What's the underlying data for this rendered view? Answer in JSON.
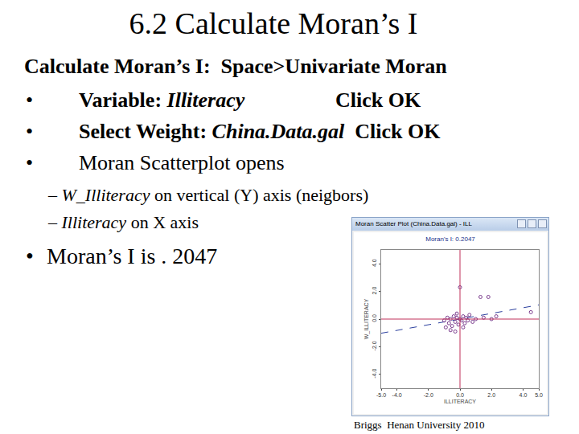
{
  "title": "6.2 Calculate Moran’s I",
  "bullet": "•",
  "heading": [
    {
      "text": "Calculate Moran’s I:  Space>Univariate Moran",
      "style": "bold"
    }
  ],
  "bullets": [
    {
      "segments": [
        {
          "text": "Variable: ",
          "style": "bold"
        },
        {
          "text": "Illiteracy",
          "style": "bolditalic"
        }
      ],
      "right": [
        {
          "text": "Click OK",
          "style": "bold"
        }
      ]
    },
    {
      "segments": [
        {
          "text": "Select Weight: ",
          "style": "bold"
        },
        {
          "text": "China.Data.gal",
          "style": "bolditalic"
        },
        {
          "text": "  Click OK",
          "style": "bold"
        }
      ]
    },
    {
      "segments": [
        {
          "text": "Moran Scatterplot opens",
          "style": "normal"
        }
      ]
    }
  ],
  "sub_bullets": [
    [
      {
        "text": "– ",
        "style": "normal"
      },
      {
        "text": "W_Illiteracy",
        "style": "italic"
      },
      {
        "text": " on vertical (Y) axis (neigbors)",
        "style": "normal"
      }
    ],
    [
      {
        "text": "– ",
        "style": "normal"
      },
      {
        "text": "Illiteracy",
        "style": "italic"
      },
      {
        "text": " on X axis",
        "style": "normal"
      }
    ]
  ],
  "result": "Moran’s I is . 2047",
  "window_title": "Moran Scatter Plot (China.Data.gal) - ILL",
  "footer": "Briggs  Henan University 2010",
  "chart_data": {
    "type": "scatter",
    "title": "Moran's I: 0.2047",
    "slope": 0.2047,
    "x_label": "ILLITERACY",
    "y_label": "W_ILLITERACY",
    "color": "#7a3a8c",
    "marker": "open_circle",
    "line_style": "dash",
    "x": [
      -1.0,
      -0.8,
      -0.7,
      -0.6,
      -0.5,
      -0.4,
      -0.3,
      -0.2,
      -0.1,
      0.0,
      0.1,
      0.2,
      0.3,
      0.4,
      0.5,
      -0.9,
      -0.6,
      -0.3,
      0.2,
      0.6,
      1.0,
      1.5,
      2.0,
      2.3,
      0.8,
      -0.2,
      0.0,
      1.3,
      1.8,
      4.5
    ],
    "values": [
      -0.1,
      0.1,
      -0.3,
      0.0,
      -0.5,
      0.2,
      -0.2,
      0.1,
      -0.4,
      0.0,
      -0.1,
      0.2,
      -0.3,
      0.1,
      -0.1,
      -0.6,
      -0.8,
      -0.9,
      -0.6,
      0.3,
      0.0,
      0.1,
      0.0,
      0.2,
      -0.2,
      0.4,
      2.3,
      1.6,
      1.6,
      0.5
    ],
    "xlim": [
      -5,
      5
    ],
    "xticks": [
      {
        "value": -5,
        "label": "-5.0"
      },
      {
        "value": -4,
        "label": "-4.0"
      },
      {
        "value": -2,
        "label": "-2.0"
      },
      {
        "value": 0,
        "label": "0.0"
      },
      {
        "value": 2,
        "label": "2.0"
      },
      {
        "value": 4,
        "label": "4.0"
      },
      {
        "value": 5,
        "label": "5.0"
      }
    ],
    "ylim": [
      -5,
      5
    ],
    "yticks": [
      {
        "value": -4,
        "label": "-4.0"
      },
      {
        "value": -2,
        "label": "-2.0"
      },
      {
        "value": 0,
        "label": "0.0"
      },
      {
        "value": 2,
        "label": "2.0"
      },
      {
        "value": 4,
        "label": "4.0"
      }
    ],
    "grid": false
  }
}
